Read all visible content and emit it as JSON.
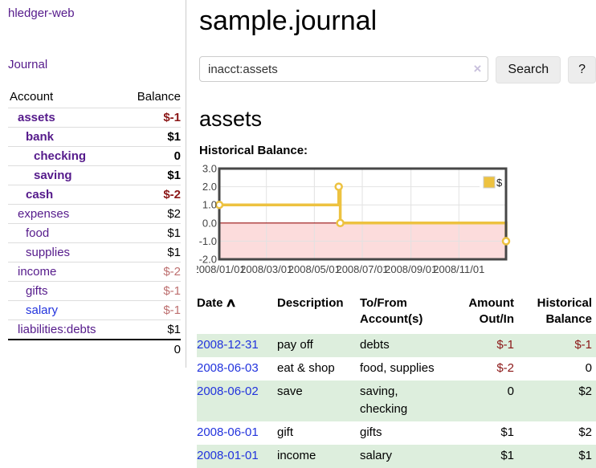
{
  "app": {
    "title": "hledger-web"
  },
  "sidebar": {
    "journal_link": "Journal",
    "table": {
      "account_header": "Account",
      "balance_header": "Balance",
      "rows": [
        {
          "name": "assets",
          "indent": 1,
          "bold": true,
          "balance": "$-1",
          "negative": true,
          "blue": false
        },
        {
          "name": "bank",
          "indent": 2,
          "bold": true,
          "balance": "$1",
          "negative": false,
          "blue": false
        },
        {
          "name": "checking",
          "indent": 3,
          "bold": true,
          "balance": "0",
          "negative": false,
          "blue": false
        },
        {
          "name": "saving",
          "indent": 3,
          "bold": true,
          "balance": "$1",
          "negative": false,
          "blue": false
        },
        {
          "name": "cash",
          "indent": 2,
          "bold": true,
          "balance": "$-2",
          "negative": true,
          "blue": false
        },
        {
          "name": "expenses",
          "indent": 1,
          "bold": false,
          "balance": "$2",
          "negative": false,
          "blue": false
        },
        {
          "name": "food",
          "indent": 2,
          "bold": false,
          "balance": "$1",
          "negative": false,
          "blue": false
        },
        {
          "name": "supplies",
          "indent": 2,
          "bold": false,
          "balance": "$1",
          "negative": false,
          "blue": false
        },
        {
          "name": "income",
          "indent": 1,
          "bold": false,
          "balance": "$-2",
          "negative": true,
          "blue": false
        },
        {
          "name": "gifts",
          "indent": 2,
          "bold": false,
          "balance": "$-1",
          "negative": true,
          "blue": false
        },
        {
          "name": "salary",
          "indent": 2,
          "bold": false,
          "balance": "$-1",
          "negative": true,
          "blue": true
        },
        {
          "name": "liabilities:debts",
          "indent": 1,
          "bold": false,
          "balance": "$1",
          "negative": false,
          "blue": false
        }
      ],
      "total": "0"
    }
  },
  "header": {
    "title": "sample.journal"
  },
  "search": {
    "value": "inacct:assets",
    "clear_icon": "×",
    "button_label": "Search",
    "help_label": "?"
  },
  "account_page": {
    "title": "assets",
    "chart_label": "Historical Balance:"
  },
  "chart_data": {
    "type": "line",
    "step": true,
    "series": [
      {
        "name": "$",
        "color": "#EDC240",
        "points": [
          [
            "2008-01-01",
            1
          ],
          [
            "2008-06-01",
            2
          ],
          [
            "2008-06-03",
            0
          ],
          [
            "2008-12-31",
            -1
          ]
        ]
      }
    ],
    "x_start": "2008-01-01",
    "x_end": "2008-12-31",
    "x_tick_dates": [
      "2008-01-01",
      "2008-03-01",
      "2008-05-01",
      "2008-07-01",
      "2008-09-01",
      "2008-11-01"
    ],
    "x_tick_labels": [
      "2008/01/01",
      "2008/03/01",
      "2008/05/01",
      "2008/07/01",
      "2008/09/01",
      "2008/11/01"
    ],
    "y_ticks": [
      3.0,
      2.0,
      1.0,
      0.0,
      -1.0,
      -2.0
    ],
    "ylim": [
      -2,
      3
    ],
    "grid": true,
    "legend": {
      "label": "$",
      "position": "top-right"
    },
    "colors": {
      "negative_region": "#fcdcdc",
      "zero_line": "#991111",
      "grid_line": "#e2e2e2",
      "border": "#474747",
      "axis_label": "#444444"
    }
  },
  "register": {
    "headers": {
      "date": "Date",
      "sort_icon": "∧",
      "description": "Description",
      "account": "To/From Account(s)",
      "amount": "Amount Out/In",
      "balance": "Historical Balance"
    },
    "rows": [
      {
        "date": "2008-12-31",
        "description": "pay off",
        "account": "debts",
        "amount": "$-1",
        "amount_negative": true,
        "balance": "$-1",
        "balance_negative": true
      },
      {
        "date": "2008-06-03",
        "description": "eat & shop",
        "account": "food, supplies",
        "amount": "$-2",
        "amount_negative": true,
        "balance": "0",
        "balance_negative": false
      },
      {
        "date": "2008-06-02",
        "description": "save",
        "account": "saving, checking",
        "amount": "0",
        "amount_negative": false,
        "balance": "$2",
        "balance_negative": false
      },
      {
        "date": "2008-06-01",
        "description": "gift",
        "account": "gifts",
        "amount": "$1",
        "amount_negative": false,
        "balance": "$2",
        "balance_negative": false
      },
      {
        "date": "2008-01-01",
        "description": "income",
        "account": "salary",
        "amount": "$1",
        "amount_negative": false,
        "balance": "$1",
        "balance_negative": false
      }
    ]
  }
}
